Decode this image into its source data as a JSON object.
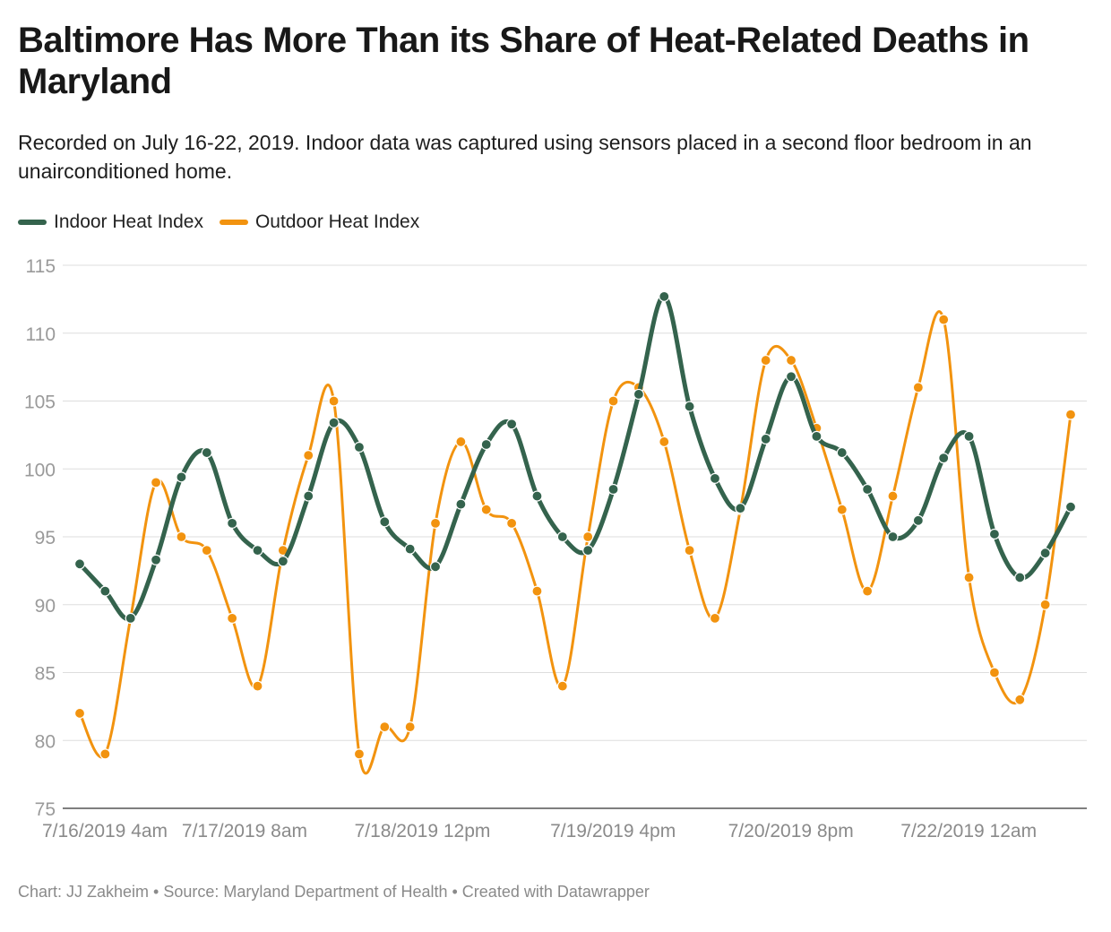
{
  "header": {
    "title": "Baltimore Has More Than its Share of Heat-Related Deaths in Maryland",
    "subtitle": "Recorded on July 16-22, 2019. Indoor data was captured using sensors placed in a second floor bedroom in an unairconditioned home."
  },
  "footer": {
    "text": "Chart: JJ Zakheim • Source: Maryland Department of Health • Created with Datawrapper"
  },
  "chart_data": {
    "type": "line",
    "ylim": [
      75,
      115
    ],
    "y_ticks": [
      75,
      80,
      85,
      90,
      95,
      100,
      105,
      110,
      115
    ],
    "x_tick_labels": [
      "7/16/2019 4am",
      "7/17/2019 8am",
      "7/18/2019 12pm",
      "7/19/2019 4pm",
      "7/20/2019 8pm",
      "7/22/2019 12am"
    ],
    "x_tick_index": [
      0,
      5.5,
      12.5,
      20,
      27,
      34
    ],
    "grid": true,
    "legend_position": "top-left",
    "series": [
      {
        "name": "Indoor Heat Index",
        "color": "#34634d",
        "values": [
          93,
          91,
          89,
          93.3,
          99.4,
          101.2,
          96,
          94,
          93.2,
          98,
          103.4,
          101.6,
          96.1,
          94.1,
          92.8,
          97.4,
          101.8,
          103.3,
          98,
          95,
          94,
          98.5,
          105.5,
          112.7,
          104.6,
          99.3,
          97.1,
          102.2,
          106.8,
          102.4,
          101.2,
          98.5,
          95,
          96.2,
          100.8,
          102.4,
          95.2,
          92,
          93.8,
          97.2
        ]
      },
      {
        "name": "Outdoor Heat Index",
        "color": "#f2930f",
        "values": [
          82,
          79,
          89,
          99,
          95,
          94,
          89,
          84,
          94,
          101,
          105,
          79,
          81,
          81,
          96,
          102,
          97,
          96,
          91,
          84,
          95,
          105,
          106,
          102,
          94,
          89,
          97,
          108,
          108,
          103,
          97,
          91,
          98,
          106,
          111,
          92,
          85,
          83,
          90,
          104
        ]
      }
    ]
  }
}
